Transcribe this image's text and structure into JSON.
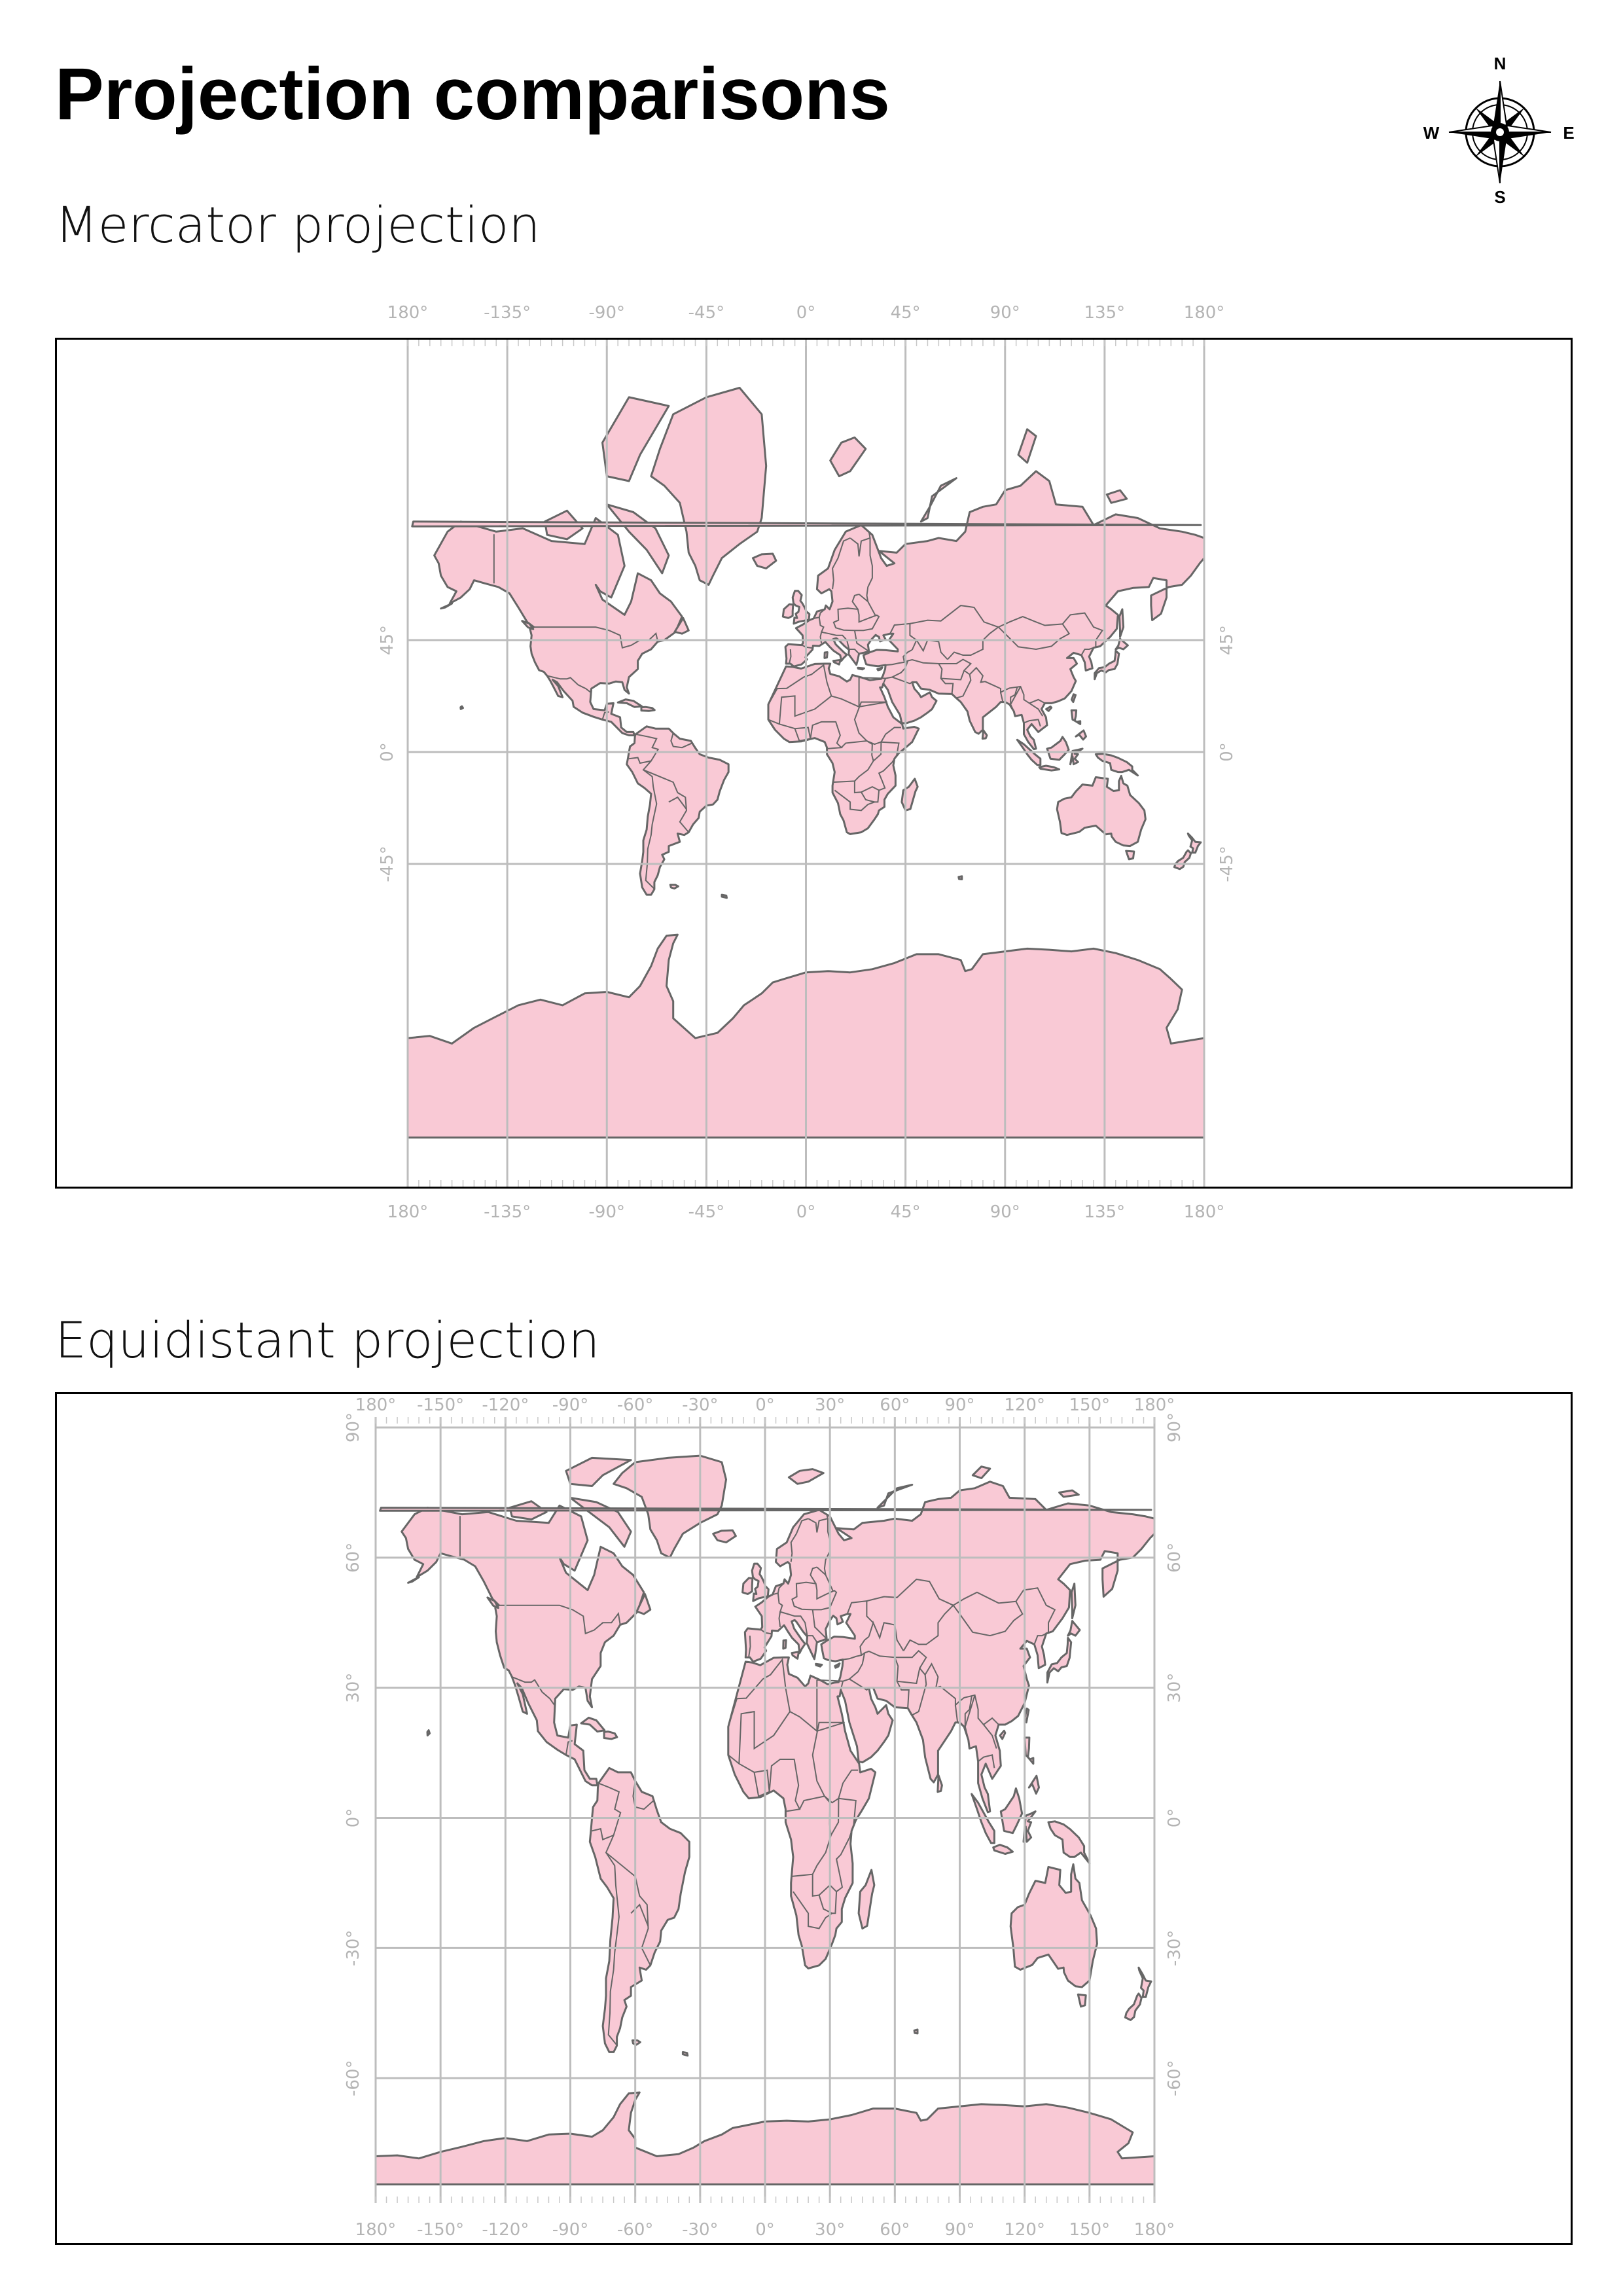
{
  "page": {
    "title": "Projection comparisons"
  },
  "compass": {
    "north": "N",
    "south": "S",
    "east": "E",
    "west": "W"
  },
  "maps": [
    {
      "id": "mercator",
      "heading": "Mercator projection",
      "projection": "mercator",
      "lon_ticks": [
        "180°",
        "-135°",
        "-90°",
        "-45°",
        "0°",
        "45°",
        "90°",
        "135°",
        "180°"
      ],
      "lat_ticks": [
        "45°",
        "0°",
        "-45°"
      ],
      "lon_values": [
        -180,
        -135,
        -90,
        -45,
        0,
        45,
        90,
        135,
        180
      ],
      "lat_values": [
        45,
        0,
        -45
      ]
    },
    {
      "id": "equidistant",
      "heading": "Equidistant projection",
      "projection": "equirectangular",
      "lon_ticks": [
        "180°",
        "-150°",
        "-120°",
        "-90°",
        "-60°",
        "-30°",
        "0°",
        "30°",
        "60°",
        "90°",
        "120°",
        "150°",
        "180°"
      ],
      "lat_ticks": [
        "90°",
        "60°",
        "30°",
        "0°",
        "-30°",
        "-60°"
      ],
      "lon_values": [
        -180,
        -150,
        -120,
        -90,
        -60,
        -30,
        0,
        30,
        60,
        90,
        120,
        150,
        180
      ],
      "lat_values": [
        90,
        60,
        30,
        0,
        -30,
        -60
      ]
    }
  ],
  "colors": {
    "land": "#f9c9d5",
    "coastline": "#666666",
    "graticule": "#bdbdbd",
    "tick_labels": "#b4b4b4",
    "frame": "#000000"
  }
}
